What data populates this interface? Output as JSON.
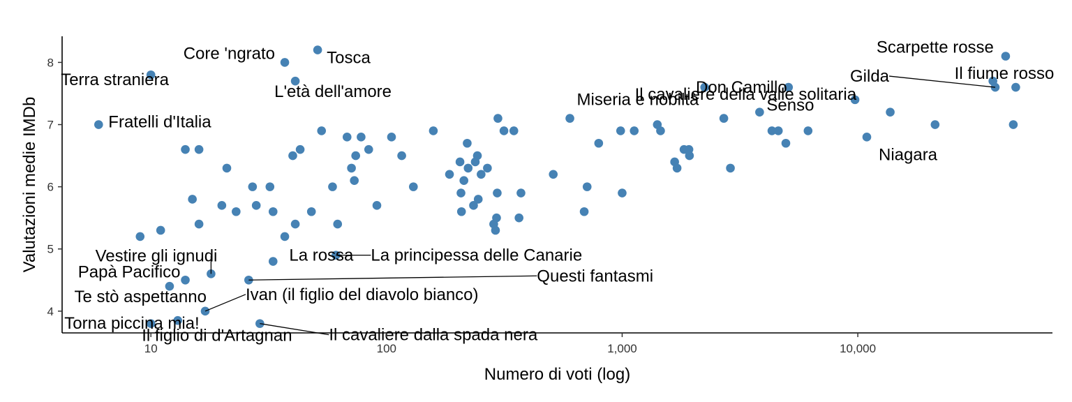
{
  "chart_data": {
    "type": "scatter",
    "xlabel": "Numero di voti (log)",
    "ylabel": "Valutazioni medie IMDb",
    "xscale": "log",
    "xlim": [
      4.2,
      67000
    ],
    "ylim": [
      3.65,
      8.42
    ],
    "xticks": [
      {
        "value": 10,
        "label": "10"
      },
      {
        "value": 100,
        "label": "100"
      },
      {
        "value": 1000,
        "label": "1,000"
      },
      {
        "value": 10000,
        "label": "10,000"
      }
    ],
    "yticks": [
      {
        "value": 4,
        "label": "4"
      },
      {
        "value": 5,
        "label": "5"
      },
      {
        "value": 6,
        "label": "6"
      },
      {
        "value": 7,
        "label": "7"
      },
      {
        "value": 8,
        "label": "8"
      }
    ],
    "grid": false,
    "point_color": "#4682B4",
    "points": [
      [
        6,
        7.0
      ],
      [
        10,
        7.8
      ],
      [
        9,
        5.2
      ],
      [
        11,
        5.3
      ],
      [
        12,
        4.4
      ],
      [
        10,
        3.8
      ],
      [
        14,
        6.6
      ],
      [
        16,
        6.6
      ],
      [
        15,
        5.8
      ],
      [
        16,
        5.4
      ],
      [
        14,
        4.5
      ],
      [
        18,
        4.6
      ],
      [
        17,
        4.0
      ],
      [
        13,
        3.85
      ],
      [
        20,
        5.7
      ],
      [
        21,
        6.3
      ],
      [
        23,
        5.6
      ],
      [
        26,
        4.5
      ],
      [
        27,
        6.0
      ],
      [
        28,
        5.7
      ],
      [
        29,
        3.8
      ],
      [
        32,
        6.0
      ],
      [
        33,
        5.6
      ],
      [
        33,
        4.8
      ],
      [
        37,
        5.2
      ],
      [
        37,
        8.0
      ],
      [
        40,
        6.5
      ],
      [
        41,
        7.7
      ],
      [
        41,
        5.4
      ],
      [
        43,
        6.6
      ],
      [
        48,
        5.6
      ],
      [
        51,
        8.2
      ],
      [
        53,
        6.9
      ],
      [
        59,
        6.0
      ],
      [
        62,
        5.4
      ],
      [
        61,
        4.9
      ],
      [
        68,
        6.8
      ],
      [
        71,
        6.3
      ],
      [
        74,
        6.5
      ],
      [
        73,
        6.1
      ],
      [
        78,
        6.8
      ],
      [
        84,
        6.6
      ],
      [
        91,
        5.7
      ],
      [
        105,
        6.8
      ],
      [
        116,
        6.5
      ],
      [
        130,
        6.0
      ],
      [
        158,
        6.9
      ],
      [
        185,
        6.2
      ],
      [
        205,
        6.4
      ],
      [
        207,
        5.9
      ],
      [
        208,
        5.6
      ],
      [
        213,
        6.1
      ],
      [
        220,
        6.7
      ],
      [
        222,
        6.3
      ],
      [
        234,
        5.7
      ],
      [
        238,
        6.4
      ],
      [
        243,
        6.5
      ],
      [
        245,
        5.8
      ],
      [
        252,
        6.2
      ],
      [
        268,
        6.3
      ],
      [
        285,
        5.4
      ],
      [
        290,
        5.3
      ],
      [
        293,
        5.5
      ],
      [
        295,
        5.9
      ],
      [
        297,
        7.1
      ],
      [
        315,
        6.9
      ],
      [
        347,
        6.9
      ],
      [
        365,
        5.5
      ],
      [
        372,
        5.9
      ],
      [
        510,
        6.2
      ],
      [
        600,
        7.1
      ],
      [
        690,
        5.6
      ],
      [
        710,
        6.0
      ],
      [
        795,
        6.7
      ],
      [
        985,
        6.9
      ],
      [
        1000,
        5.9
      ],
      [
        1125,
        6.9
      ],
      [
        1410,
        7.0
      ],
      [
        1455,
        6.9
      ],
      [
        1670,
        6.4
      ],
      [
        1710,
        6.3
      ],
      [
        1830,
        6.6
      ],
      [
        1920,
        6.6
      ],
      [
        1930,
        6.5
      ],
      [
        2240,
        7.6
      ],
      [
        2700,
        7.1
      ],
      [
        2880,
        6.3
      ],
      [
        3830,
        7.2
      ],
      [
        4320,
        6.9
      ],
      [
        4600,
        6.9
      ],
      [
        4950,
        6.7
      ],
      [
        5080,
        7.6
      ],
      [
        6150,
        6.9
      ],
      [
        9730,
        7.4
      ],
      [
        10920,
        6.8
      ],
      [
        13730,
        7.2
      ],
      [
        21280,
        7.0
      ],
      [
        37440,
        7.7
      ],
      [
        38300,
        7.6
      ],
      [
        42400,
        8.1
      ],
      [
        45700,
        7.0
      ],
      [
        46800,
        7.6
      ]
    ],
    "labels": [
      {
        "text": "Core 'ngrato",
        "x": 37,
        "y": 8.0
      },
      {
        "text": "Tosca",
        "x": 51,
        "y": 8.2
      },
      {
        "text": "Terra straniera",
        "x": 10,
        "y": 7.8
      },
      {
        "text": "L'età dell'amore",
        "x": 41,
        "y": 7.7
      },
      {
        "text": "Fratelli d'Italia",
        "x": 6,
        "y": 7.0
      },
      {
        "text": "Scarpette rosse",
        "x": 42400,
        "y": 8.1
      },
      {
        "text": "Don Camillo",
        "x": 2240,
        "y": 7.6
      },
      {
        "text": "Gilda",
        "x": 38300,
        "y": 7.6
      },
      {
        "text": "Il fiume rosso",
        "x": 46800,
        "y": 7.6
      },
      {
        "text": "Miseria e nobiltà",
        "x": 600,
        "y": 7.1
      },
      {
        "text": "Il cavaliere della valle solitaria",
        "x": 9730,
        "y": 7.4
      },
      {
        "text": "Senso",
        "x": 3830,
        "y": 7.2
      },
      {
        "text": "Niagara",
        "x": 10920,
        "y": 6.8
      },
      {
        "text": "Vestire gli ignudi",
        "x": 18,
        "y": 4.6
      },
      {
        "text": "La rossa",
        "x": 61,
        "y": 4.9
      },
      {
        "text": "La principessa delle Canarie",
        "x": 61,
        "y": 4.9
      },
      {
        "text": "Papà Pacifico",
        "x": 14,
        "y": 4.5
      },
      {
        "text": "Questi fantasmi",
        "x": 26,
        "y": 4.5
      },
      {
        "text": "Te stò aspettanno",
        "x": 12,
        "y": 4.4
      },
      {
        "text": "Ivan (il figlio del diavolo bianco)",
        "x": 17,
        "y": 4.0
      },
      {
        "text": "Torna piccina mia!",
        "x": 13,
        "y": 3.85
      },
      {
        "text": "Il figlio di d'Artagnan",
        "x": 10,
        "y": 3.8
      },
      {
        "text": "Il cavaliere dalla spada nera",
        "x": 29,
        "y": 3.8
      }
    ]
  }
}
